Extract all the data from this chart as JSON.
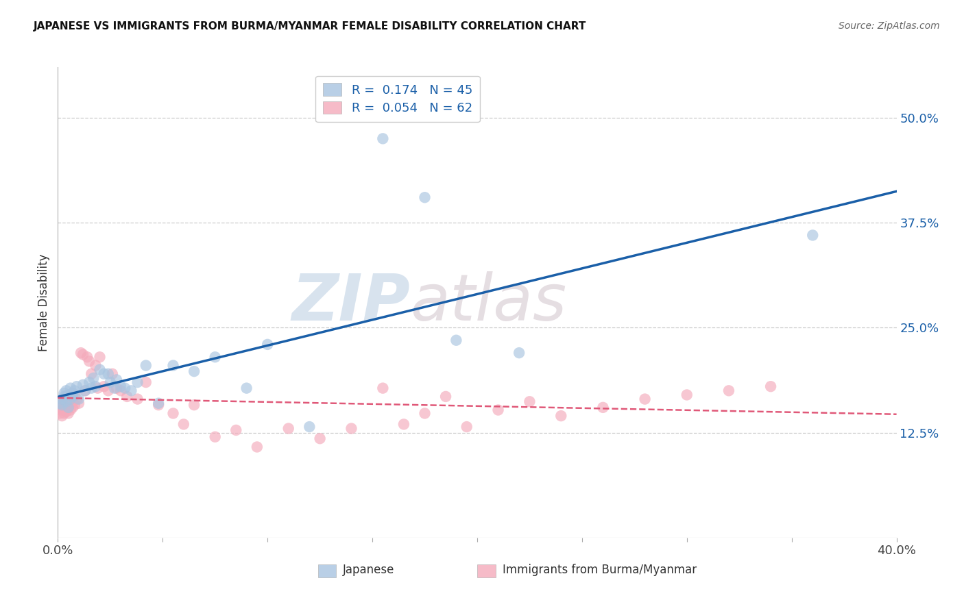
{
  "title": "JAPANESE VS IMMIGRANTS FROM BURMA/MYANMAR FEMALE DISABILITY CORRELATION CHART",
  "source": "Source: ZipAtlas.com",
  "ylabel": "Female Disability",
  "ytick_labels": [
    "50.0%",
    "37.5%",
    "25.0%",
    "12.5%"
  ],
  "ytick_values": [
    0.5,
    0.375,
    0.25,
    0.125
  ],
  "xlim": [
    0.0,
    0.4
  ],
  "ylim": [
    0.0,
    0.56
  ],
  "watermark_zip": "ZIP",
  "watermark_atlas": "atlas",
  "blue_color": "#A8C4E0",
  "pink_color": "#F4AABB",
  "blue_line_color": "#1A5FA8",
  "pink_line_color": "#E05878",
  "legend_label1": "R =  0.174   N = 45",
  "legend_label2": "R =  0.054   N = 62",
  "japanese_x": [
    0.001,
    0.002,
    0.002,
    0.003,
    0.003,
    0.004,
    0.004,
    0.005,
    0.005,
    0.006,
    0.006,
    0.007,
    0.007,
    0.008,
    0.009,
    0.01,
    0.012,
    0.013,
    0.015,
    0.016,
    0.017,
    0.018,
    0.02,
    0.022,
    0.024,
    0.025,
    0.027,
    0.028,
    0.03,
    0.032,
    0.035,
    0.038,
    0.042,
    0.048,
    0.055,
    0.065,
    0.075,
    0.09,
    0.1,
    0.12,
    0.155,
    0.175,
    0.19,
    0.22,
    0.36
  ],
  "japanese_y": [
    0.16,
    0.165,
    0.158,
    0.172,
    0.168,
    0.175,
    0.162,
    0.17,
    0.155,
    0.165,
    0.178,
    0.168,
    0.172,
    0.175,
    0.18,
    0.165,
    0.182,
    0.175,
    0.185,
    0.178,
    0.19,
    0.18,
    0.2,
    0.195,
    0.195,
    0.185,
    0.178,
    0.188,
    0.18,
    0.178,
    0.175,
    0.185,
    0.205,
    0.16,
    0.205,
    0.198,
    0.215,
    0.178,
    0.23,
    0.132,
    0.475,
    0.405,
    0.235,
    0.22,
    0.36
  ],
  "burma_x": [
    0.001,
    0.001,
    0.002,
    0.002,
    0.002,
    0.003,
    0.003,
    0.003,
    0.004,
    0.004,
    0.004,
    0.005,
    0.005,
    0.005,
    0.006,
    0.006,
    0.007,
    0.007,
    0.008,
    0.008,
    0.009,
    0.01,
    0.011,
    0.012,
    0.013,
    0.014,
    0.015,
    0.016,
    0.018,
    0.019,
    0.02,
    0.022,
    0.024,
    0.026,
    0.028,
    0.03,
    0.033,
    0.038,
    0.042,
    0.048,
    0.055,
    0.06,
    0.065,
    0.075,
    0.085,
    0.095,
    0.11,
    0.125,
    0.14,
    0.155,
    0.165,
    0.175,
    0.185,
    0.195,
    0.21,
    0.225,
    0.24,
    0.26,
    0.28,
    0.3,
    0.32,
    0.34
  ],
  "burma_y": [
    0.148,
    0.155,
    0.145,
    0.152,
    0.16,
    0.148,
    0.155,
    0.162,
    0.15,
    0.158,
    0.165,
    0.148,
    0.155,
    0.162,
    0.152,
    0.168,
    0.155,
    0.162,
    0.158,
    0.17,
    0.165,
    0.16,
    0.22,
    0.218,
    0.175,
    0.215,
    0.21,
    0.195,
    0.205,
    0.178,
    0.215,
    0.18,
    0.175,
    0.195,
    0.178,
    0.175,
    0.168,
    0.165,
    0.185,
    0.158,
    0.148,
    0.135,
    0.158,
    0.12,
    0.128,
    0.108,
    0.13,
    0.118,
    0.13,
    0.178,
    0.135,
    0.148,
    0.168,
    0.132,
    0.152,
    0.162,
    0.145,
    0.155,
    0.165,
    0.17,
    0.175,
    0.18
  ]
}
